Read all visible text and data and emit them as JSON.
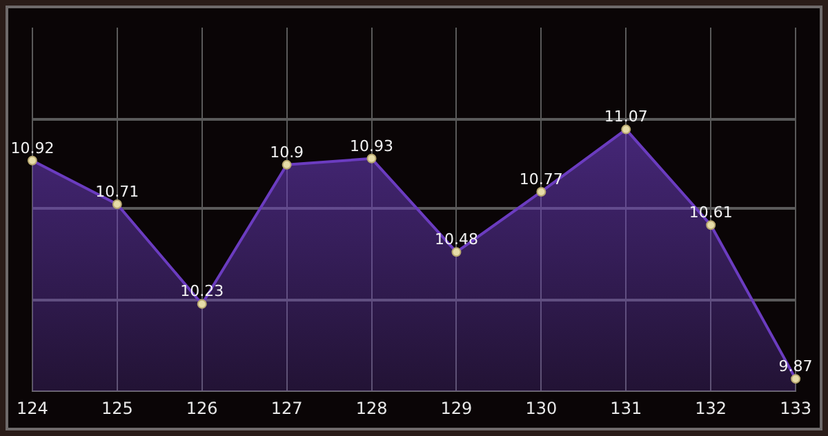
{
  "chart_data": {
    "type": "area",
    "categories": [
      "124",
      "125",
      "126",
      "127",
      "128",
      "129",
      "130",
      "131",
      "132",
      "133"
    ],
    "series": [
      {
        "color": "#6b3cc0",
        "values": [
          10.92,
          10.71,
          10.23,
          10.9,
          10.93,
          10.48,
          10.77,
          11.07,
          10.61,
          9.87
        ]
      }
    ],
    "ylim": [
      9.81,
      11.56
    ],
    "yticks": [
      {
        "value": 10.25,
        "label": null
      },
      {
        "value": 10.69,
        "label": null
      },
      {
        "value": 11.12,
        "label": null
      }
    ],
    "tick_labels": "x",
    "grid": true,
    "legend": false,
    "marker": "circle",
    "data_labels": true
  }
}
